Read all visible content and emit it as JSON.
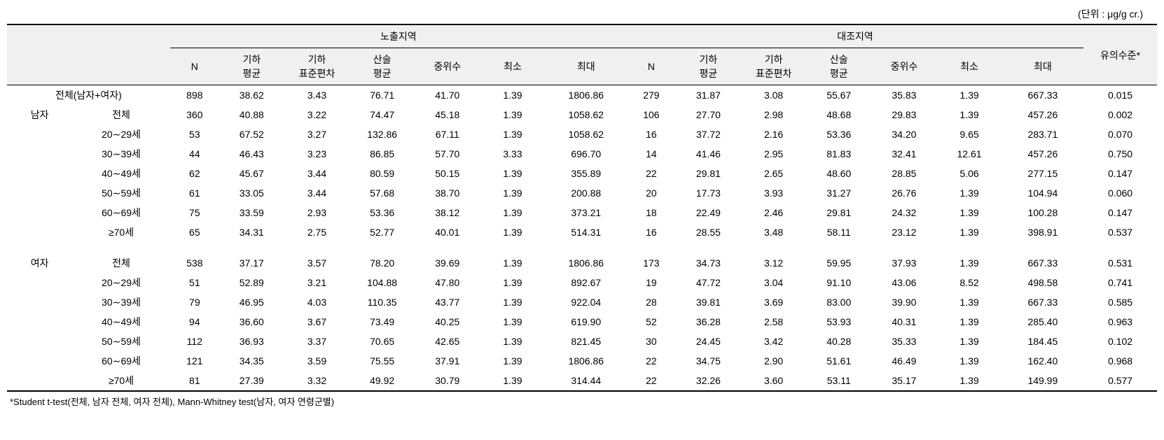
{
  "unit_label": "(단위 : μg/g cr.)",
  "headers": {
    "region_exposed": "노출지역",
    "region_control": "대조지역",
    "significance": "유의수준*",
    "n": "N",
    "geo_mean": "기하\n평균",
    "geo_sd": "기하\n표준편차",
    "arith_mean": "산술\n평균",
    "median": "중위수",
    "min": "최소",
    "max": "최대"
  },
  "group_labels": {
    "total": "전체(남자+여자)",
    "male": "남자",
    "female": "여자",
    "subtotal": "전체",
    "age_20_29": "20∼29세",
    "age_30_39": "30∼39세",
    "age_40_49": "40∼49세",
    "age_50_59": "50∼59세",
    "age_60_69": "60∼69세",
    "age_70plus": "≥70세"
  },
  "rows": {
    "total": {
      "exp_n": "898",
      "exp_gm": "38.62",
      "exp_gsd": "3.43",
      "exp_am": "76.71",
      "exp_med": "41.70",
      "exp_min": "1.39",
      "exp_max": "1806.86",
      "ctl_n": "279",
      "ctl_gm": "31.87",
      "ctl_gsd": "3.08",
      "ctl_am": "55.67",
      "ctl_med": "35.83",
      "ctl_min": "1.39",
      "ctl_max": "667.33",
      "sig": "0.015"
    },
    "male_total": {
      "exp_n": "360",
      "exp_gm": "40.88",
      "exp_gsd": "3.22",
      "exp_am": "74.47",
      "exp_med": "45.18",
      "exp_min": "1.39",
      "exp_max": "1058.62",
      "ctl_n": "106",
      "ctl_gm": "27.70",
      "ctl_gsd": "2.98",
      "ctl_am": "48.68",
      "ctl_med": "29.83",
      "ctl_min": "1.39",
      "ctl_max": "457.26",
      "sig": "0.002"
    },
    "male_20_29": {
      "exp_n": "53",
      "exp_gm": "67.52",
      "exp_gsd": "3.27",
      "exp_am": "132.86",
      "exp_med": "67.11",
      "exp_min": "1.39",
      "exp_max": "1058.62",
      "ctl_n": "16",
      "ctl_gm": "37.72",
      "ctl_gsd": "2.16",
      "ctl_am": "53.36",
      "ctl_med": "34.20",
      "ctl_min": "9.65",
      "ctl_max": "283.71",
      "sig": "0.070"
    },
    "male_30_39": {
      "exp_n": "44",
      "exp_gm": "46.43",
      "exp_gsd": "3.23",
      "exp_am": "86.85",
      "exp_med": "57.70",
      "exp_min": "3.33",
      "exp_max": "696.70",
      "ctl_n": "14",
      "ctl_gm": "41.46",
      "ctl_gsd": "2.95",
      "ctl_am": "81.83",
      "ctl_med": "32.41",
      "ctl_min": "12.61",
      "ctl_max": "457.26",
      "sig": "0.750"
    },
    "male_40_49": {
      "exp_n": "62",
      "exp_gm": "45.67",
      "exp_gsd": "3.44",
      "exp_am": "80.59",
      "exp_med": "50.15",
      "exp_min": "1.39",
      "exp_max": "355.89",
      "ctl_n": "22",
      "ctl_gm": "29.81",
      "ctl_gsd": "2.65",
      "ctl_am": "48.60",
      "ctl_med": "28.85",
      "ctl_min": "5.06",
      "ctl_max": "277.15",
      "sig": "0.147"
    },
    "male_50_59": {
      "exp_n": "61",
      "exp_gm": "33.05",
      "exp_gsd": "3.44",
      "exp_am": "57.68",
      "exp_med": "38.70",
      "exp_min": "1.39",
      "exp_max": "200.88",
      "ctl_n": "20",
      "ctl_gm": "17.73",
      "ctl_gsd": "3.93",
      "ctl_am": "31.27",
      "ctl_med": "26.76",
      "ctl_min": "1.39",
      "ctl_max": "104.94",
      "sig": "0.060"
    },
    "male_60_69": {
      "exp_n": "75",
      "exp_gm": "33.59",
      "exp_gsd": "2.93",
      "exp_am": "53.36",
      "exp_med": "38.12",
      "exp_min": "1.39",
      "exp_max": "373.21",
      "ctl_n": "18",
      "ctl_gm": "22.49",
      "ctl_gsd": "2.46",
      "ctl_am": "29.81",
      "ctl_med": "24.32",
      "ctl_min": "1.39",
      "ctl_max": "100.28",
      "sig": "0.147"
    },
    "male_70plus": {
      "exp_n": "65",
      "exp_gm": "34.31",
      "exp_gsd": "2.75",
      "exp_am": "52.77",
      "exp_med": "40.01",
      "exp_min": "1.39",
      "exp_max": "514.31",
      "ctl_n": "16",
      "ctl_gm": "28.55",
      "ctl_gsd": "3.48",
      "ctl_am": "58.11",
      "ctl_med": "23.12",
      "ctl_min": "1.39",
      "ctl_max": "398.91",
      "sig": "0.537"
    },
    "female_total": {
      "exp_n": "538",
      "exp_gm": "37.17",
      "exp_gsd": "3.57",
      "exp_am": "78.20",
      "exp_med": "39.69",
      "exp_min": "1.39",
      "exp_max": "1806.86",
      "ctl_n": "173",
      "ctl_gm": "34.73",
      "ctl_gsd": "3.12",
      "ctl_am": "59.95",
      "ctl_med": "37.93",
      "ctl_min": "1.39",
      "ctl_max": "667.33",
      "sig": "0.531"
    },
    "female_20_29": {
      "exp_n": "51",
      "exp_gm": "52.89",
      "exp_gsd": "3.21",
      "exp_am": "104.88",
      "exp_med": "47.80",
      "exp_min": "1.39",
      "exp_max": "892.67",
      "ctl_n": "19",
      "ctl_gm": "47.72",
      "ctl_gsd": "3.04",
      "ctl_am": "91.10",
      "ctl_med": "43.06",
      "ctl_min": "8.52",
      "ctl_max": "498.58",
      "sig": "0.741"
    },
    "female_30_39": {
      "exp_n": "79",
      "exp_gm": "46.95",
      "exp_gsd": "4.03",
      "exp_am": "110.35",
      "exp_med": "43.77",
      "exp_min": "1.39",
      "exp_max": "922.04",
      "ctl_n": "28",
      "ctl_gm": "39.81",
      "ctl_gsd": "3.69",
      "ctl_am": "83.00",
      "ctl_med": "39.90",
      "ctl_min": "1.39",
      "ctl_max": "667.33",
      "sig": "0.585"
    },
    "female_40_49": {
      "exp_n": "94",
      "exp_gm": "36.60",
      "exp_gsd": "3.67",
      "exp_am": "73.49",
      "exp_med": "40.25",
      "exp_min": "1.39",
      "exp_max": "619.90",
      "ctl_n": "52",
      "ctl_gm": "36.28",
      "ctl_gsd": "2.58",
      "ctl_am": "53.93",
      "ctl_med": "40.31",
      "ctl_min": "1.39",
      "ctl_max": "285.40",
      "sig": "0.963"
    },
    "female_50_59": {
      "exp_n": "112",
      "exp_gm": "36.93",
      "exp_gsd": "3.37",
      "exp_am": "70.65",
      "exp_med": "42.65",
      "exp_min": "1.39",
      "exp_max": "821.45",
      "ctl_n": "30",
      "ctl_gm": "24.45",
      "ctl_gsd": "3.42",
      "ctl_am": "40.28",
      "ctl_med": "35.33",
      "ctl_min": "1.39",
      "ctl_max": "184.45",
      "sig": "0.102"
    },
    "female_60_69": {
      "exp_n": "121",
      "exp_gm": "34.35",
      "exp_gsd": "3.59",
      "exp_am": "75.55",
      "exp_med": "37.91",
      "exp_min": "1.39",
      "exp_max": "1806.86",
      "ctl_n": "22",
      "ctl_gm": "34.75",
      "ctl_gsd": "2.90",
      "ctl_am": "51.61",
      "ctl_med": "46.49",
      "ctl_min": "1.39",
      "ctl_max": "162.40",
      "sig": "0.968"
    },
    "female_70plus": {
      "exp_n": "81",
      "exp_gm": "27.39",
      "exp_gsd": "3.32",
      "exp_am": "49.92",
      "exp_med": "30.79",
      "exp_min": "1.39",
      "exp_max": "314.44",
      "ctl_n": "22",
      "ctl_gm": "32.26",
      "ctl_gsd": "3.60",
      "ctl_am": "53.11",
      "ctl_med": "35.17",
      "ctl_min": "1.39",
      "ctl_max": "149.99",
      "sig": "0.577"
    }
  },
  "footnote": "*Student t-test(전체, 남자 전체, 여자 전체), Mann-Whitney test(남자, 여자 연령군별)"
}
